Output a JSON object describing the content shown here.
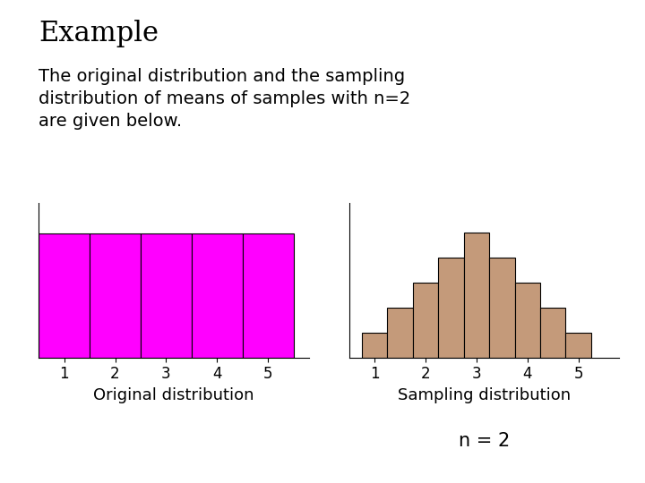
{
  "title": "Example",
  "subtitle": "The original distribution and the sampling\ndistribution of means of samples with n=2\nare given below.",
  "chart_data": [
    {
      "type": "bar",
      "x": [
        1,
        2,
        3,
        4,
        5
      ],
      "values": [
        1,
        1,
        1,
        1,
        1
      ],
      "color": "#FF00FF",
      "xlim": [
        0.5,
        5.8
      ],
      "xticks": [
        1,
        2,
        3,
        4,
        5
      ],
      "ylim": [
        0,
        1.25
      ],
      "yticks": [],
      "tick_labels": "x",
      "grid": false,
      "xlabel": "Original distribution"
    },
    {
      "type": "bar",
      "x": [
        1.0,
        1.5,
        2.0,
        2.5,
        3.0,
        3.5,
        4.0,
        4.5,
        5.0
      ],
      "values": [
        1,
        2,
        3,
        4,
        5,
        4,
        3,
        2,
        1
      ],
      "color": "#C49A7A",
      "xlim": [
        0.5,
        5.8
      ],
      "xticks": [
        1,
        2,
        3,
        4,
        5
      ],
      "ylim": [
        0,
        6.2
      ],
      "yticks": [],
      "tick_labels": "x",
      "grid": false,
      "xlabel": "Sampling distribution",
      "annotation": "n = 2"
    }
  ]
}
